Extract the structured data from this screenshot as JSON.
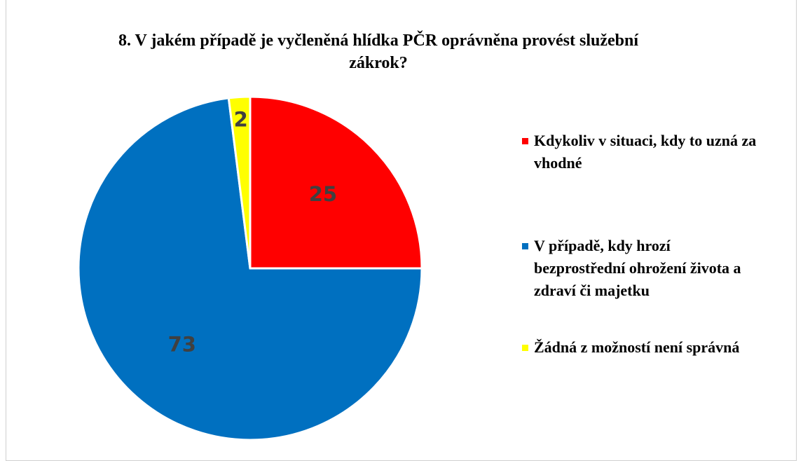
{
  "chart_data": {
    "type": "pie",
    "title": "8. V jakém případě je vyčleněná hlídka PČR oprávněna provést služební zákrok?",
    "categories": [
      "Kdykoliv v situaci, kdy to uzná za vhodné",
      "V případě, kdy hrozí bezprostřední ohrožení života a zdraví či majetku",
      "Žádná z možností není správná"
    ],
    "values": [
      25,
      73,
      2
    ],
    "colors": [
      "#ff0000",
      "#0070c0",
      "#ffff00"
    ],
    "legend": "right"
  }
}
